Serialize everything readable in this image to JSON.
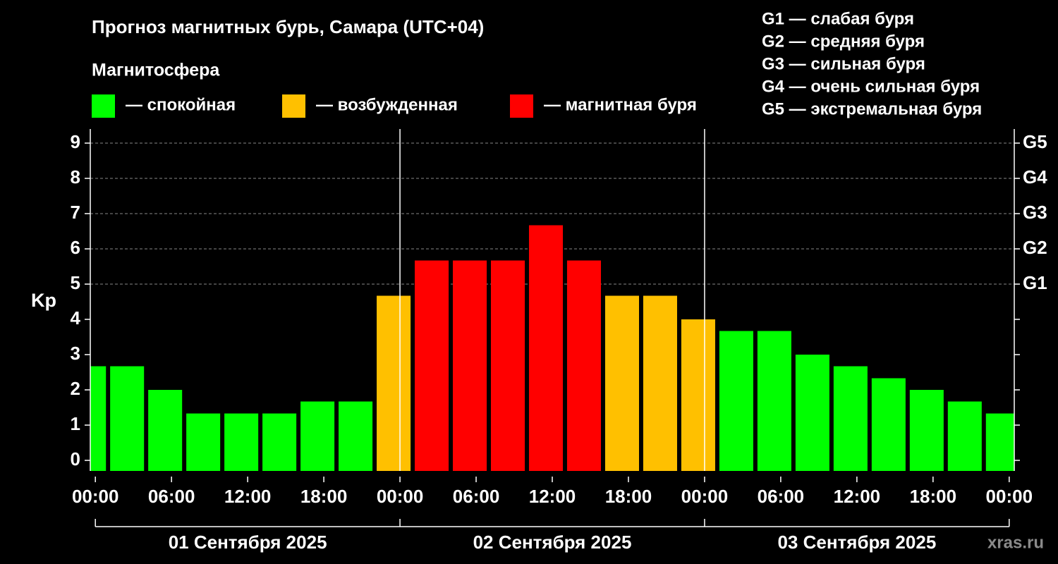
{
  "chart_data": {
    "type": "bar",
    "title": "Прогноз магнитных бурь, Самара (UTC+04)",
    "subtitle": "Магнитосфера",
    "y_label": "Kp",
    "legend": [
      {
        "color": "#00ff00",
        "label": "— спокойная"
      },
      {
        "color": "#ffc000",
        "label": "— возбужденная"
      },
      {
        "color": "#ff0000",
        "label": "— магнитная буря"
      }
    ],
    "storm_scale": [
      "G1 — слабая буря",
      "G2 — средняя буря",
      "G3 — сильная буря",
      "G4 — очень сильная буря",
      "G5 — экстремальная буря"
    ],
    "x": [
      -0.5,
      2.5,
      5.5,
      8.5,
      11.5,
      14.5,
      17.5,
      20.5,
      23.5,
      26.5,
      29.5,
      32.5,
      35.5,
      38.5,
      41.5,
      44.5,
      47.5,
      50.5,
      53.5,
      56.5,
      59.5,
      62.5,
      65.5,
      68.5,
      71.5
    ],
    "values": [
      2.67,
      2.67,
      2,
      1.33,
      1.33,
      1.33,
      1.67,
      1.67,
      4.67,
      5.67,
      5.67,
      5.67,
      6.67,
      5.67,
      4.67,
      4.67,
      4,
      3.67,
      3.67,
      3,
      2.67,
      2.33,
      2,
      1.67,
      1.33
    ],
    "colors": [
      "#00ff00",
      "#00ff00",
      "#00ff00",
      "#00ff00",
      "#00ff00",
      "#00ff00",
      "#00ff00",
      "#00ff00",
      "#ffc000",
      "#ff0000",
      "#ff0000",
      "#ff0000",
      "#ff0000",
      "#ff0000",
      "#ffc000",
      "#ffc000",
      "#ffc000",
      "#00ff00",
      "#00ff00",
      "#00ff00",
      "#00ff00",
      "#00ff00",
      "#00ff00",
      "#00ff00",
      "#00ff00"
    ],
    "bar_width": 2.67,
    "xlim": [
      -0.4,
      72.4
    ],
    "ylim": [
      -0.3,
      9.4
    ],
    "xticks": [
      {
        "value": 0,
        "label": "00:00"
      },
      {
        "value": 6,
        "label": "06:00"
      },
      {
        "value": 12,
        "label": "12:00"
      },
      {
        "value": 18,
        "label": "18:00"
      },
      {
        "value": 24,
        "label": "00:00"
      },
      {
        "value": 30,
        "label": "06:00"
      },
      {
        "value": 36,
        "label": "12:00"
      },
      {
        "value": 42,
        "label": "18:00"
      },
      {
        "value": 48,
        "label": "00:00"
      },
      {
        "value": 54,
        "label": "06:00"
      },
      {
        "value": 60,
        "label": "12:00"
      },
      {
        "value": 66,
        "label": "18:00"
      },
      {
        "value": 72,
        "label": "00:00"
      }
    ],
    "yticks": [
      0,
      1,
      2,
      3,
      4,
      5,
      6,
      7,
      8,
      9
    ],
    "y2ticks": [
      {
        "value": 5,
        "label": "G1"
      },
      {
        "value": 6,
        "label": "G2"
      },
      {
        "value": 7,
        "label": "G3"
      },
      {
        "value": 8,
        "label": "G4"
      },
      {
        "value": 9,
        "label": "G5"
      }
    ],
    "day_bounds": [
      0,
      24,
      48,
      72
    ],
    "day_labels": [
      "01 Сентября 2025",
      "02 Сентября 2025",
      "03 Сентября 2025"
    ],
    "grid": true,
    "watermark": "xras.ru"
  }
}
